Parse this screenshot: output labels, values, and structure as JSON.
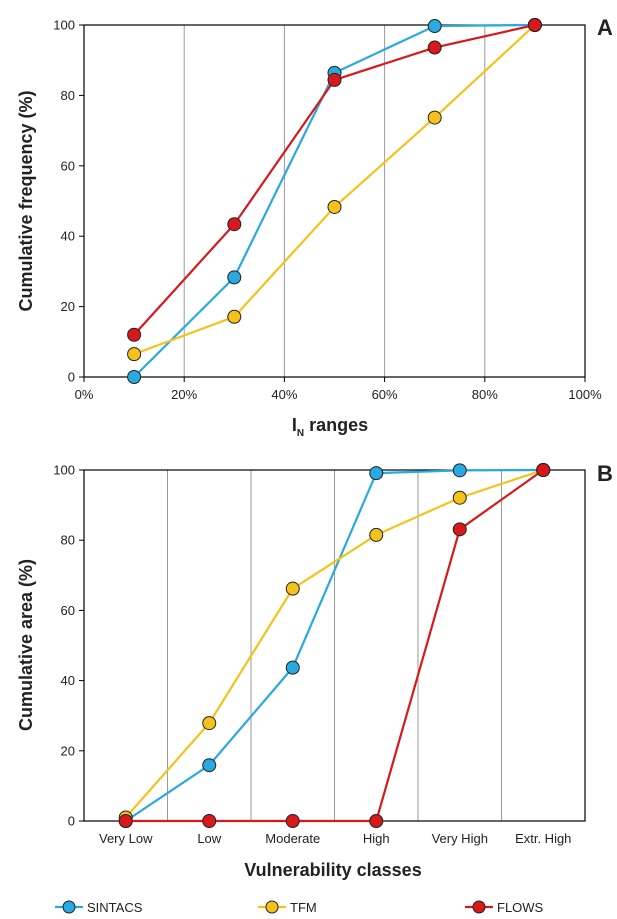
{
  "colors": {
    "SINTACS": "#29a9e0",
    "TFM": "#f5c21b",
    "FLOWS": "#d7191c",
    "grid": "#9a9a9a",
    "axis": "#000000"
  },
  "legend": [
    {
      "name": "SINTACS",
      "color": "#29a9e0"
    },
    {
      "name": "TFM",
      "color": "#f5c21b"
    },
    {
      "name": "FLOWS",
      "color": "#d7191c"
    }
  ],
  "chart_data": [
    {
      "type": "line",
      "panel_label": "A",
      "ylabel": "Cumulative frequency (%)",
      "xlabel_main": "I",
      "xlabel_sub": "N",
      "xlabel_rest": " ranges",
      "xlim": [
        0,
        100
      ],
      "ylim": [
        0,
        100
      ],
      "xticks": [
        0,
        20,
        40,
        60,
        80,
        100
      ],
      "xtick_labels": [
        "0%",
        "20%",
        "40%",
        "60%",
        "80%",
        "100%"
      ],
      "yticks": [
        0,
        20,
        40,
        60,
        80,
        100
      ],
      "ytick_labels": [
        "0",
        "20",
        "40",
        "60",
        "80",
        "100"
      ],
      "x": [
        10,
        30,
        50,
        70,
        90
      ],
      "series": [
        {
          "name": "SINTACS",
          "values": [
            0,
            28.3,
            86.4,
            99.7,
            100
          ]
        },
        {
          "name": "TFM",
          "values": [
            6.5,
            17.1,
            48.3,
            73.7,
            100
          ]
        },
        {
          "name": "FLOWS",
          "values": [
            12,
            43.4,
            84.4,
            93.6,
            100
          ]
        }
      ]
    },
    {
      "type": "line",
      "panel_label": "B",
      "ylabel": "Cumulative area (%)",
      "xlabel": "Vulnerability classes",
      "categories": [
        "Very Low",
        "Low",
        "Moderate",
        "High",
        "Very High",
        "Extr. High"
      ],
      "ylim": [
        0,
        100
      ],
      "yticks": [
        0,
        20,
        40,
        60,
        80,
        100
      ],
      "ytick_labels": [
        "0",
        "20",
        "40",
        "60",
        "80",
        "100"
      ],
      "series": [
        {
          "name": "SINTACS",
          "values": [
            0,
            15.9,
            43.7,
            99.1,
            99.9,
            100
          ]
        },
        {
          "name": "TFM",
          "values": [
            1,
            27.9,
            66.2,
            81.5,
            92.1,
            100
          ]
        },
        {
          "name": "FLOWS",
          "values": [
            0,
            0,
            0,
            0,
            83.1,
            100
          ]
        }
      ]
    }
  ]
}
